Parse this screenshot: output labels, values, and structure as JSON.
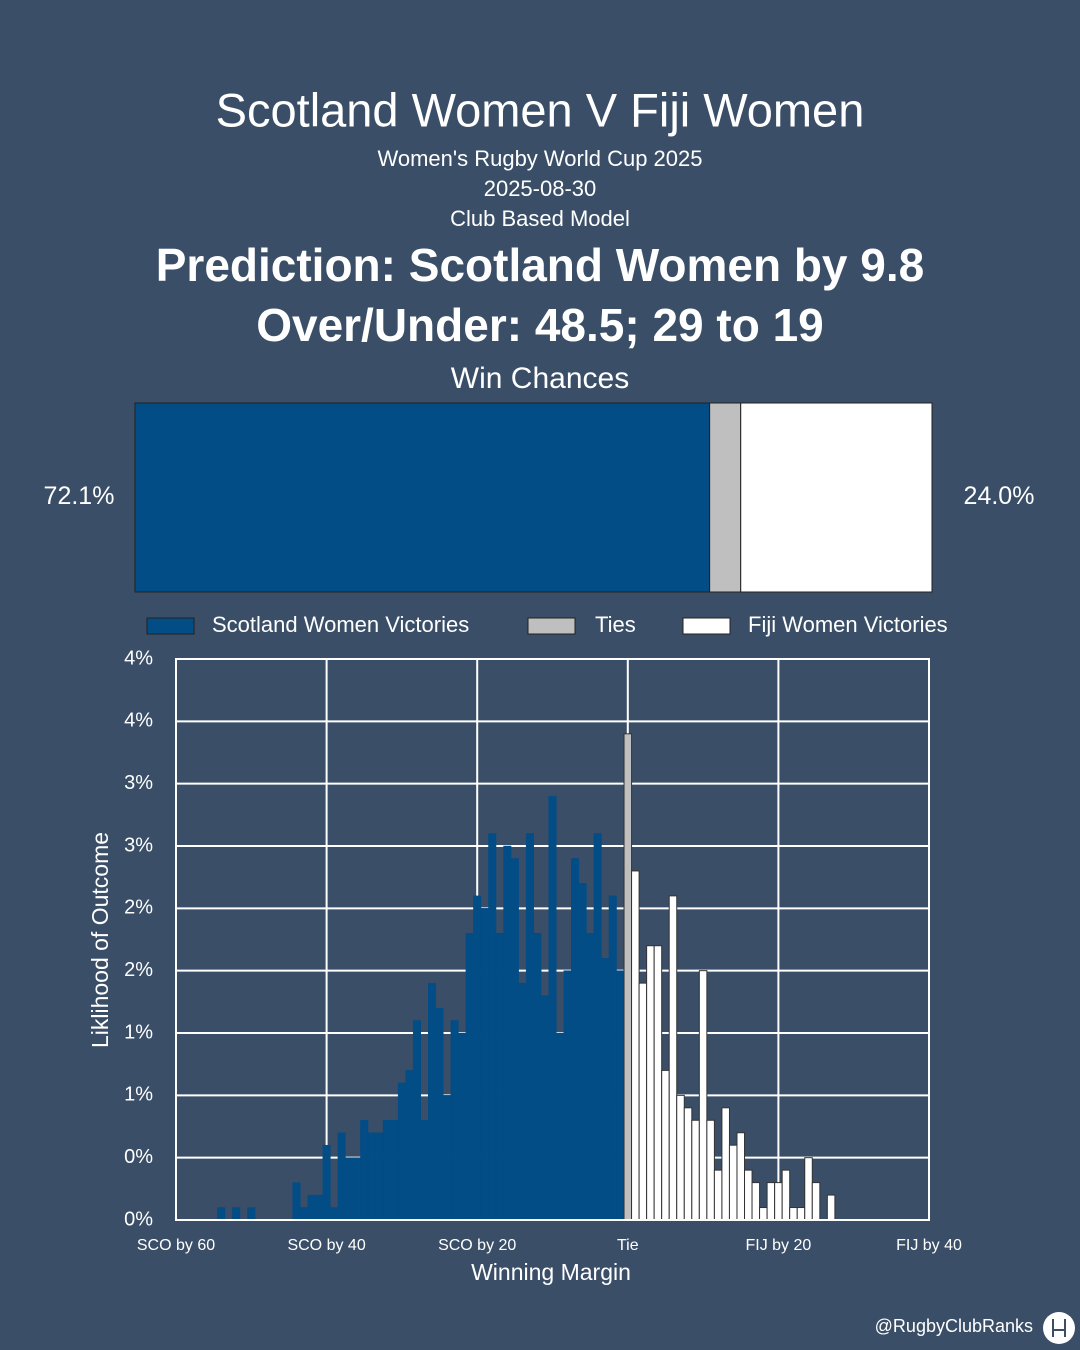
{
  "header": {
    "title": "Scotland Women V Fiji Women",
    "competition": "Women's Rugby World Cup 2025",
    "date": "2025-08-30",
    "model": "Club Based Model",
    "prediction": "Prediction: Scotland Women by 9.8",
    "over_under": "Over/Under: 48.5; 29 to 19"
  },
  "chart_data": [
    {
      "type": "stacked-bar",
      "title": "Win Chances",
      "xlim": [
        0,
        100
      ],
      "legend": "bottom",
      "series": [
        {
          "name": "Scotland Women Victories",
          "color": "#034d87",
          "values": [
            72.1
          ],
          "value_labels": [
            "72.1%"
          ]
        },
        {
          "name": "Ties",
          "color": "#bfbfbf",
          "values": [
            3.9
          ]
        },
        {
          "name": "Fiji Women Victories",
          "color": "#ffffff",
          "values": [
            24.0
          ],
          "value_labels": [
            "24.0%"
          ]
        }
      ]
    },
    {
      "type": "bar",
      "x_label": "Winning Margin",
      "y_label": "Liklihood of Outcome",
      "grid": true,
      "xlim": [
        -60,
        40
      ],
      "ylim": [
        0,
        4.5
      ],
      "xticks": [
        {
          "value": -60,
          "label": "SCO by 60"
        },
        {
          "value": -40,
          "label": "SCO by 40"
        },
        {
          "value": -20,
          "label": "SCO by 20"
        },
        {
          "value": 0,
          "label": "Tie"
        },
        {
          "value": 20,
          "label": "FIJ by 20"
        },
        {
          "value": 40,
          "label": "FIJ by 40"
        }
      ],
      "yticks": [
        {
          "value": 0,
          "label": "0%"
        },
        {
          "value": 0.5,
          "label": "0%"
        },
        {
          "value": 1,
          "label": "1%"
        },
        {
          "value": 1.5,
          "label": "1%"
        },
        {
          "value": 2,
          "label": "2%"
        },
        {
          "value": 2.5,
          "label": "2%"
        },
        {
          "value": 3,
          "label": "3%"
        },
        {
          "value": 3.5,
          "label": "3%"
        },
        {
          "value": 4,
          "label": "4%"
        },
        {
          "value": 4.5,
          "label": "4%"
        }
      ],
      "series": [
        {
          "color": "#034d87",
          "x": [
            -54,
            -52,
            -50,
            -44,
            -43,
            -42,
            -41,
            -40,
            -39,
            -38,
            -37,
            -36,
            -35,
            -34,
            -33,
            -32,
            -31,
            -30,
            -29,
            -28,
            -27,
            -26,
            -25,
            -24,
            -23,
            -22,
            -21,
            -20,
            -19,
            -18,
            -17,
            -16,
            -15,
            -14,
            -13,
            -12,
            -11,
            -10,
            -9,
            -8,
            -7,
            -6,
            -5,
            -4,
            -3,
            -2,
            -1
          ],
          "values": [
            0.1,
            0.1,
            0.1,
            0.3,
            0.1,
            0.2,
            0.2,
            0.6,
            0.1,
            0.7,
            0.5,
            0.5,
            0.8,
            0.7,
            0.7,
            0.8,
            0.8,
            1.1,
            1.2,
            1.6,
            0.8,
            1.9,
            1.7,
            1.0,
            1.6,
            1.5,
            2.3,
            2.6,
            2.5,
            3.1,
            2.3,
            3.0,
            2.9,
            1.9,
            3.1,
            2.3,
            1.8,
            3.4,
            1.5,
            2.0,
            2.9,
            2.7,
            2.3,
            3.1,
            2.1,
            2.6,
            2.0
          ]
        },
        {
          "color": "#bfbfbf",
          "x": [
            0
          ],
          "values": [
            3.9
          ]
        },
        {
          "color": "#ffffff",
          "x": [
            1,
            2,
            3,
            4,
            5,
            6,
            7,
            8,
            9,
            10,
            11,
            12,
            13,
            14,
            15,
            16,
            17,
            18,
            19,
            20,
            21,
            22,
            23,
            24,
            25,
            27
          ],
          "values": [
            2.8,
            1.9,
            2.2,
            2.2,
            1.2,
            2.6,
            1.0,
            0.9,
            0.8,
            2.0,
            0.8,
            0.4,
            0.9,
            0.6,
            0.7,
            0.4,
            0.3,
            0.1,
            0.3,
            0.3,
            0.4,
            0.1,
            0.1,
            0.5,
            0.3,
            0.2
          ]
        }
      ]
    }
  ],
  "footer": {
    "handle": "@RugbyClubRanks"
  }
}
